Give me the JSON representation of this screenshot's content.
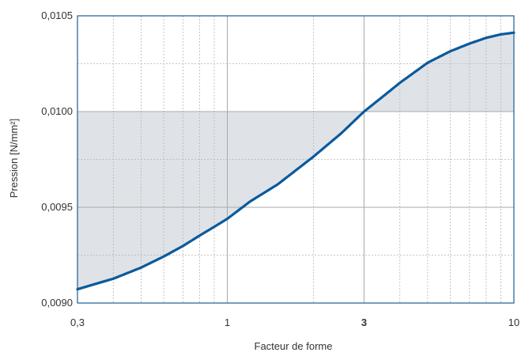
{
  "chart_data": {
    "type": "area",
    "title": "",
    "xlabel": "Facteur de forme",
    "ylabel": "Pression [N/mm²]",
    "x_scale": "log",
    "xlim": [
      0.3,
      10
    ],
    "ylim": [
      0.009,
      0.0105
    ],
    "x_major_ticks": [
      0.3,
      1,
      3,
      10
    ],
    "x_tick_labels": [
      "0,3",
      "1",
      "3",
      "10"
    ],
    "x_bold_tick": "3",
    "y_major_ticks": [
      0.009,
      0.0095,
      0.01,
      0.0105
    ],
    "y_tick_labels": [
      "0,0090",
      "0,0095",
      "0,0100",
      "0,0105"
    ],
    "y_minor_ticks": [
      0.00925,
      0.00975,
      0.01025
    ],
    "grid": true,
    "legend": "none",
    "reference_y": 0.01,
    "colors": {
      "line": "#0a5a9c",
      "fill": "#dfe3e8",
      "frame": "#1a5c94",
      "grid_major": "#a8a8a8",
      "grid_minor": "#b5b5b5"
    },
    "series": [
      {
        "x": [
          0.3,
          0.4,
          0.5,
          0.6,
          0.7,
          0.8,
          0.9,
          1.0,
          1.2,
          1.5,
          2.0,
          2.5,
          3.0,
          3.5,
          4.0,
          5.0,
          6.0,
          7.0,
          8.0,
          9.0,
          10.0
        ],
        "values": [
          0.009072,
          0.009127,
          0.009185,
          0.009243,
          0.009298,
          0.009352,
          0.009398,
          0.00944,
          0.00953,
          0.00962,
          0.009765,
          0.009887,
          0.01,
          0.01008,
          0.01015,
          0.010255,
          0.010315,
          0.010355,
          0.010385,
          0.010403,
          0.010412
        ]
      }
    ]
  }
}
